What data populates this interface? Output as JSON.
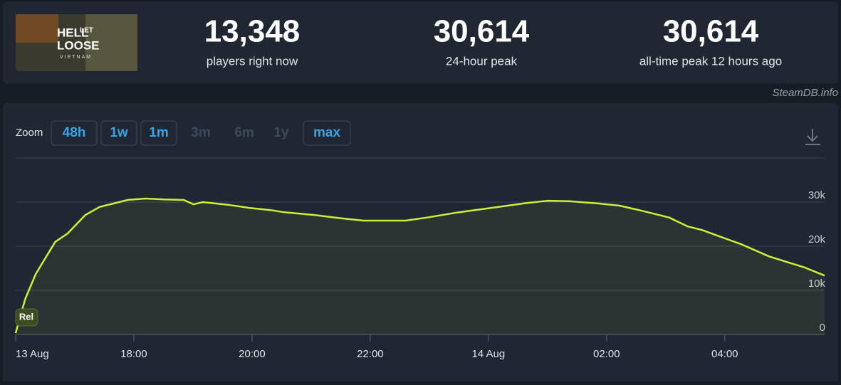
{
  "header": {
    "logo": {
      "lines": [
        "HELL",
        "LET",
        "LOOSE",
        "VIETNAM"
      ]
    },
    "stats": [
      {
        "value": "13,348",
        "label": "players right now"
      },
      {
        "value": "30,614",
        "label": "24-hour peak"
      },
      {
        "value": "30,614",
        "label": "all-time peak 12 hours ago"
      }
    ],
    "credit": "SteamDB.info"
  },
  "zoom": {
    "label": "Zoom",
    "options": [
      {
        "text": "48h",
        "active": true
      },
      {
        "text": "1w",
        "active": true
      },
      {
        "text": "1m",
        "active": true
      },
      {
        "text": "3m",
        "active": false
      },
      {
        "text": "6m",
        "active": false
      },
      {
        "text": "1y",
        "active": false
      },
      {
        "text": "max",
        "active": true
      }
    ]
  },
  "chart_data": {
    "type": "area",
    "color": "#c6f237",
    "x": [
      0,
      0.16,
      0.34,
      0.52,
      0.67,
      0.88,
      1.18,
      1.42,
      1.66,
      1.9,
      2.2,
      2.51,
      2.84,
      3.01,
      3.17,
      3.59,
      3.95,
      4.31,
      4.55,
      5.04,
      5.52,
      5.88,
      6.36,
      6.6,
      6.96,
      7.45,
      8.05,
      8.65,
      9.01,
      9.37,
      9.86,
      10.22,
      10.58,
      11.06,
      11.37,
      11.61,
      12.27,
      12.75,
      13.35,
      13.69
    ],
    "values": [
      300,
      8000,
      13700,
      17700,
      21000,
      22900,
      27100,
      28900,
      29700,
      30500,
      30800,
      30600,
      30500,
      29500,
      30000,
      29400,
      28700,
      28200,
      27700,
      27100,
      26300,
      25800,
      25800,
      25800,
      26500,
      27600,
      28700,
      29800,
      30300,
      30200,
      29700,
      29200,
      28100,
      26500,
      24500,
      23700,
      20500,
      17700,
      15200,
      13348
    ],
    "xlim": [
      0,
      13.69
    ],
    "xticks": [
      {
        "value": 0,
        "label": "13 Aug"
      },
      {
        "value": 2,
        "label": "18:00"
      },
      {
        "value": 4,
        "label": "20:00"
      },
      {
        "value": 6,
        "label": "22:00"
      },
      {
        "value": 8,
        "label": "14 Aug"
      },
      {
        "value": 10,
        "label": "02:00"
      },
      {
        "value": 12,
        "label": "04:00"
      }
    ],
    "ylim": [
      0,
      40000
    ],
    "yticks": [
      0,
      {
        "value": 10000,
        "label": "10k"
      },
      {
        "value": 20000,
        "label": "20k"
      },
      {
        "value": 30000,
        "label": "30k"
      }
    ],
    "annotation": "Rel",
    "grid": true
  }
}
